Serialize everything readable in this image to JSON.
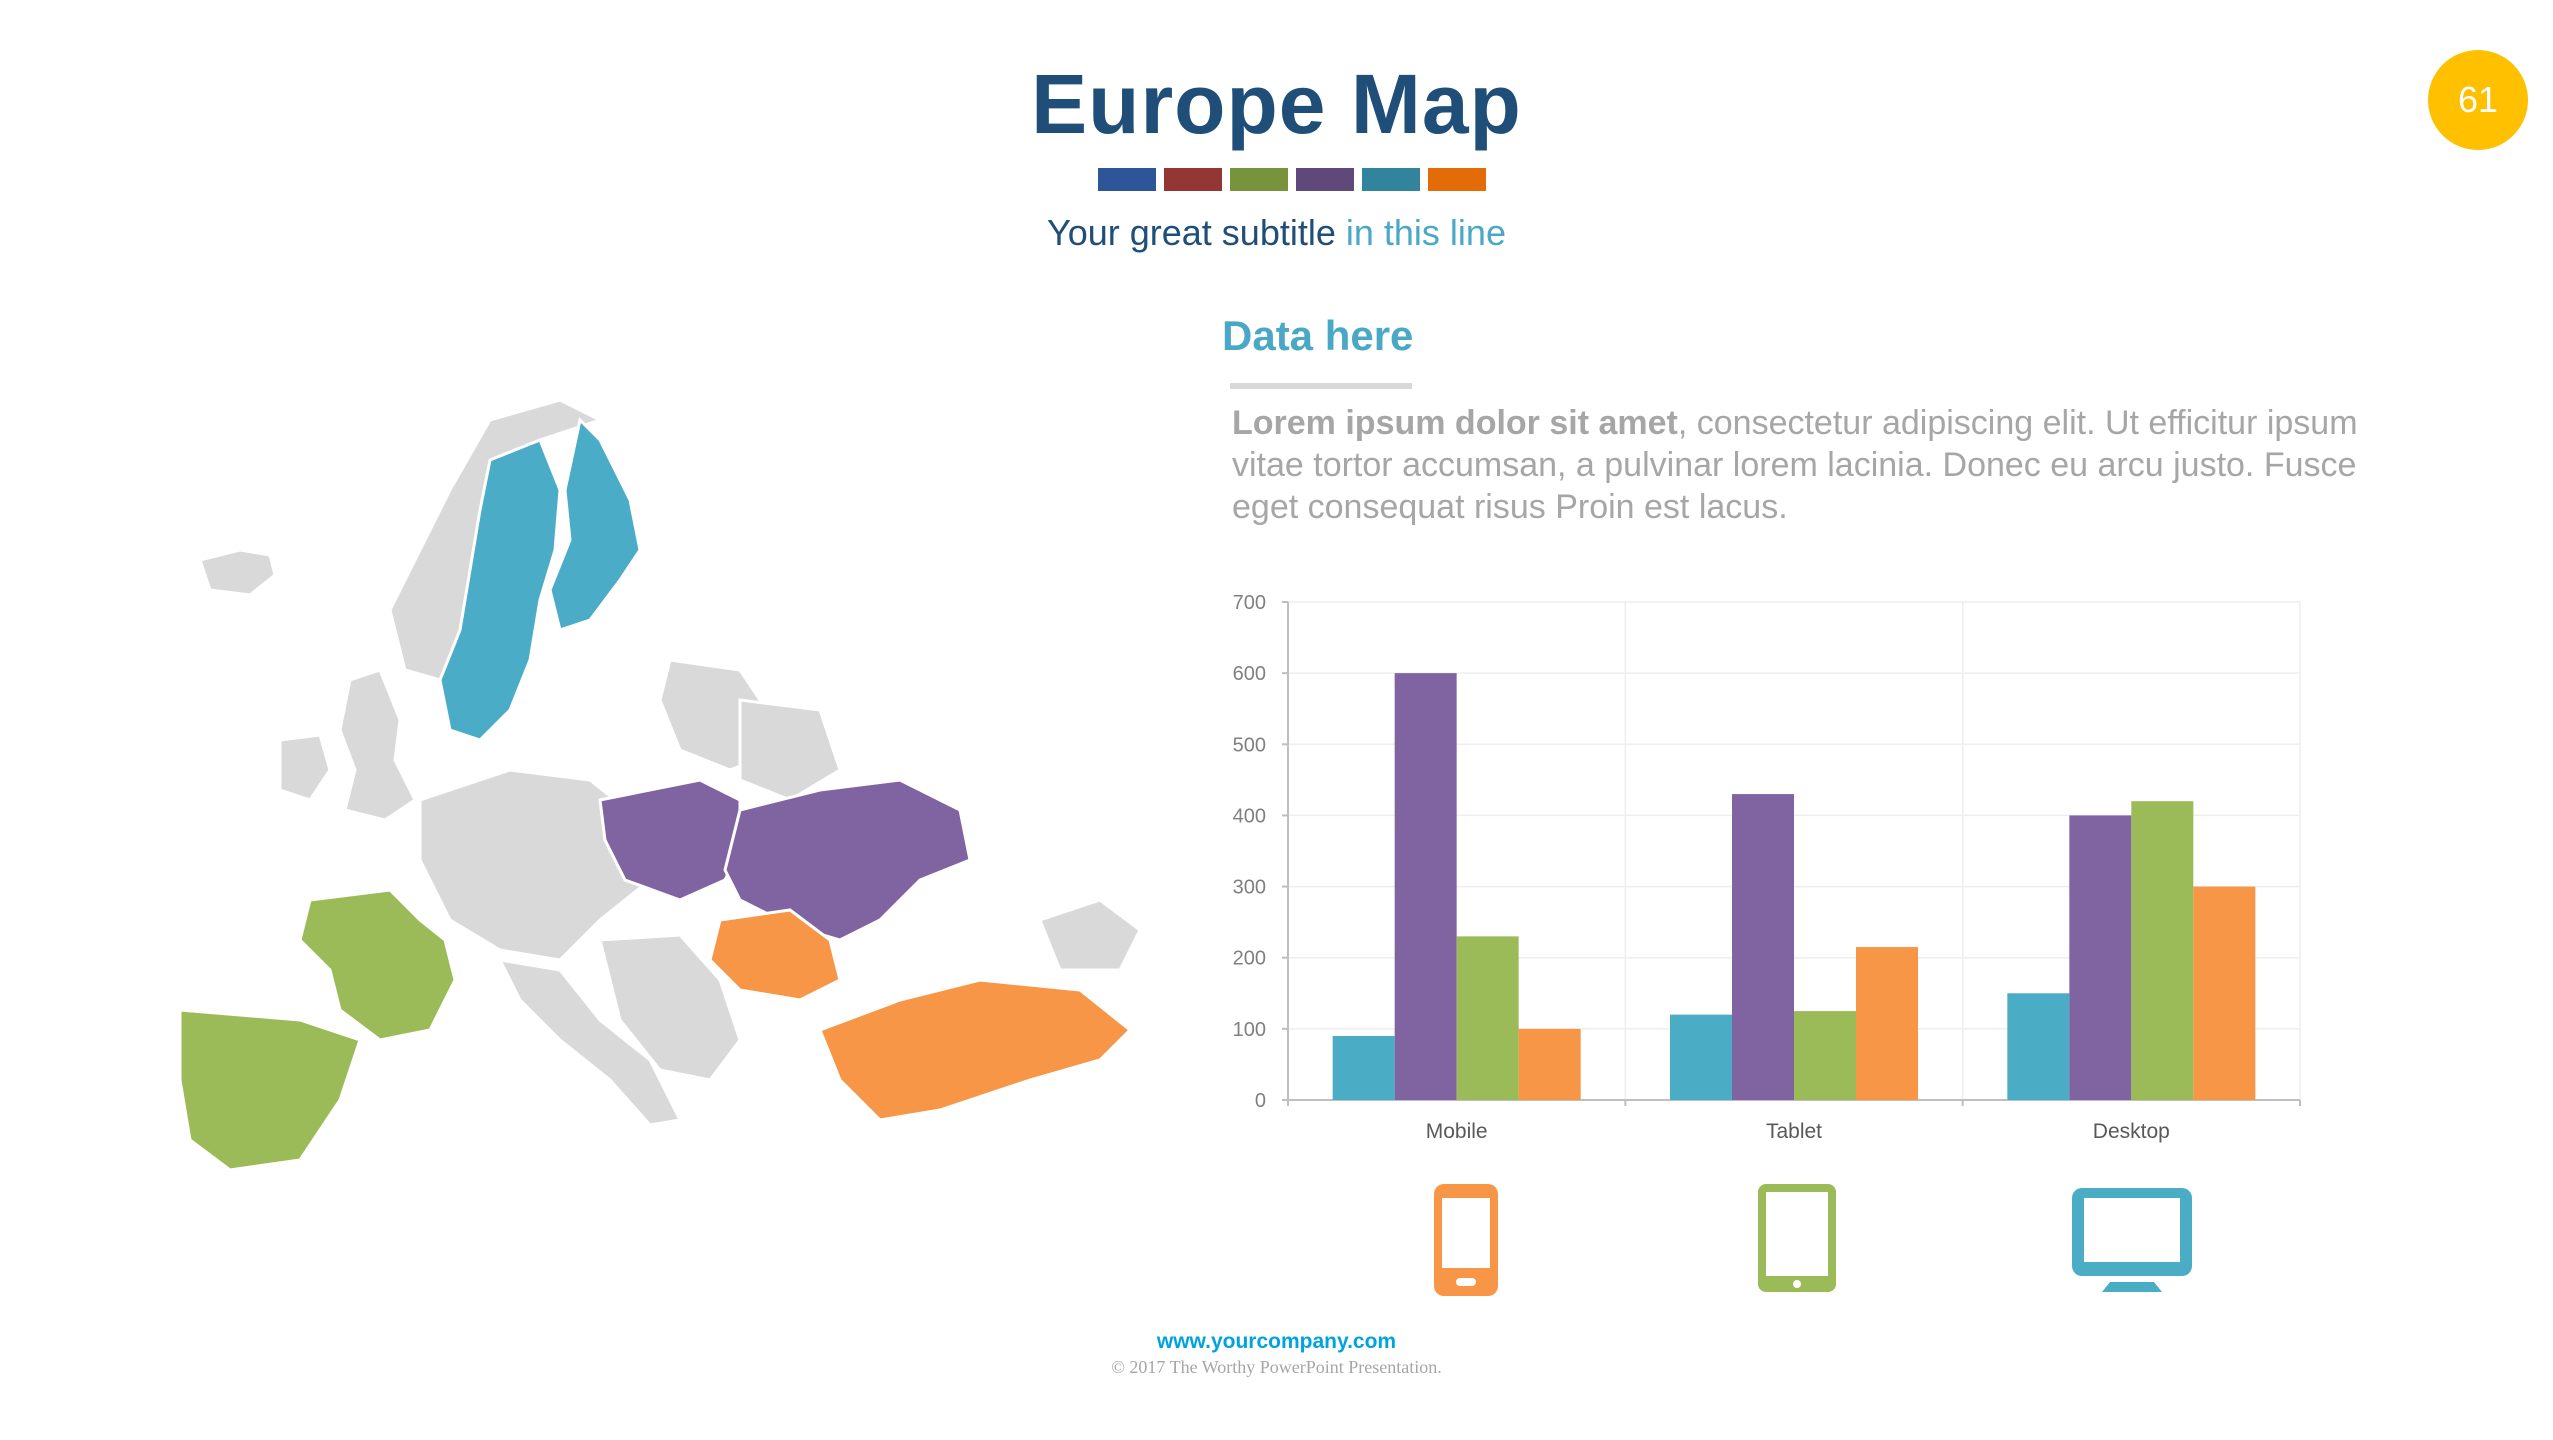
{
  "slide": {
    "title": "Europe Map",
    "subtitle_main": "Your great subtitle",
    "subtitle_accent": "in this line",
    "page_number": "61",
    "strip_colors": [
      "#2e5597",
      "#943634",
      "#77933c",
      "#5f497a",
      "#31849b",
      "#e36c09"
    ]
  },
  "content": {
    "heading": "Data here",
    "body_bold": "Lorem ipsum dolor sit amet",
    "body_rest": ", consectetur adipiscing elit. Ut efficitur ipsum vitae tortor accumsan, a pulvinar lorem lacinia. Donec eu arcu justo. Fusce eget consequat risus Proin est lacus."
  },
  "map": {
    "highlight_colors": {
      "blue": "#4aacc6",
      "purple": "#8064a2",
      "green": "#9bbb59",
      "orange": "#f79646",
      "base": "#d9d9d9"
    }
  },
  "chart_data": {
    "type": "bar",
    "categories": [
      "Mobile",
      "Tablet",
      "Desktop"
    ],
    "series": [
      {
        "color": "#4bacc6",
        "values": [
          90,
          120,
          150
        ]
      },
      {
        "color": "#8064a2",
        "values": [
          600,
          430,
          400
        ]
      },
      {
        "color": "#9bbb59",
        "values": [
          230,
          125,
          420
        ]
      },
      {
        "color": "#f79646",
        "values": [
          100,
          215,
          300
        ]
      }
    ],
    "ylim": [
      0,
      700
    ],
    "yticks": [
      0,
      100,
      200,
      300,
      400,
      500,
      600,
      700
    ],
    "grid": true,
    "legend": "none"
  },
  "devices": [
    {
      "name": "mobile",
      "color": "#f79646"
    },
    {
      "name": "tablet",
      "color": "#9bbb59"
    },
    {
      "name": "desktop",
      "color": "#4bacc6"
    }
  ],
  "footer": {
    "url": "www.yourcompany.com",
    "copyright": "© 2017 The Worthy PowerPoint Presentation."
  }
}
